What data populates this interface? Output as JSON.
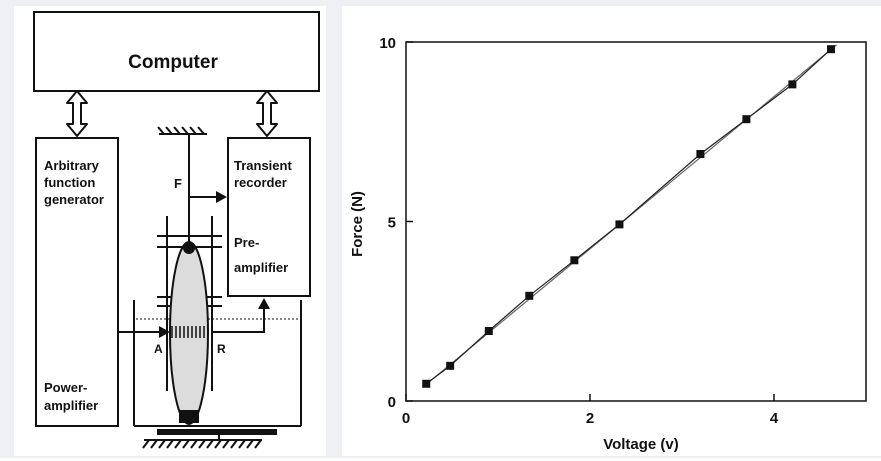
{
  "diagram": {
    "computer_label": "Computer",
    "afg_label": [
      "Arbitrary",
      "function",
      "generator"
    ],
    "power_amp_label": [
      "Power-",
      "amplifier"
    ],
    "transient_label": [
      "Transient",
      "recorder"
    ],
    "preamp_label": [
      "Pre-",
      "amplifier"
    ],
    "force_label": "F",
    "point_a_label": "A",
    "point_r_label": "R"
  },
  "chart_data": {
    "type": "line",
    "xlabel": "Voltage (v)",
    "ylabel": "Force (N)",
    "xlim": [
      0,
      5
    ],
    "ylim": [
      0,
      10
    ],
    "x_ticks": [
      0,
      2,
      4
    ],
    "y_ticks": [
      0,
      5,
      10
    ],
    "grid": false,
    "series": [
      {
        "marker": "square",
        "x": [
          0.22,
          0.48,
          0.9,
          1.34,
          1.83,
          2.32,
          3.2,
          3.7,
          4.2,
          4.62
        ],
        "y": [
          0.48,
          0.98,
          1.95,
          2.93,
          3.92,
          4.92,
          6.88,
          7.85,
          8.82,
          9.8
        ]
      },
      {
        "style": "fit-line",
        "x": [
          0.18,
          4.68
        ],
        "y": [
          0.38,
          9.92
        ]
      }
    ]
  }
}
